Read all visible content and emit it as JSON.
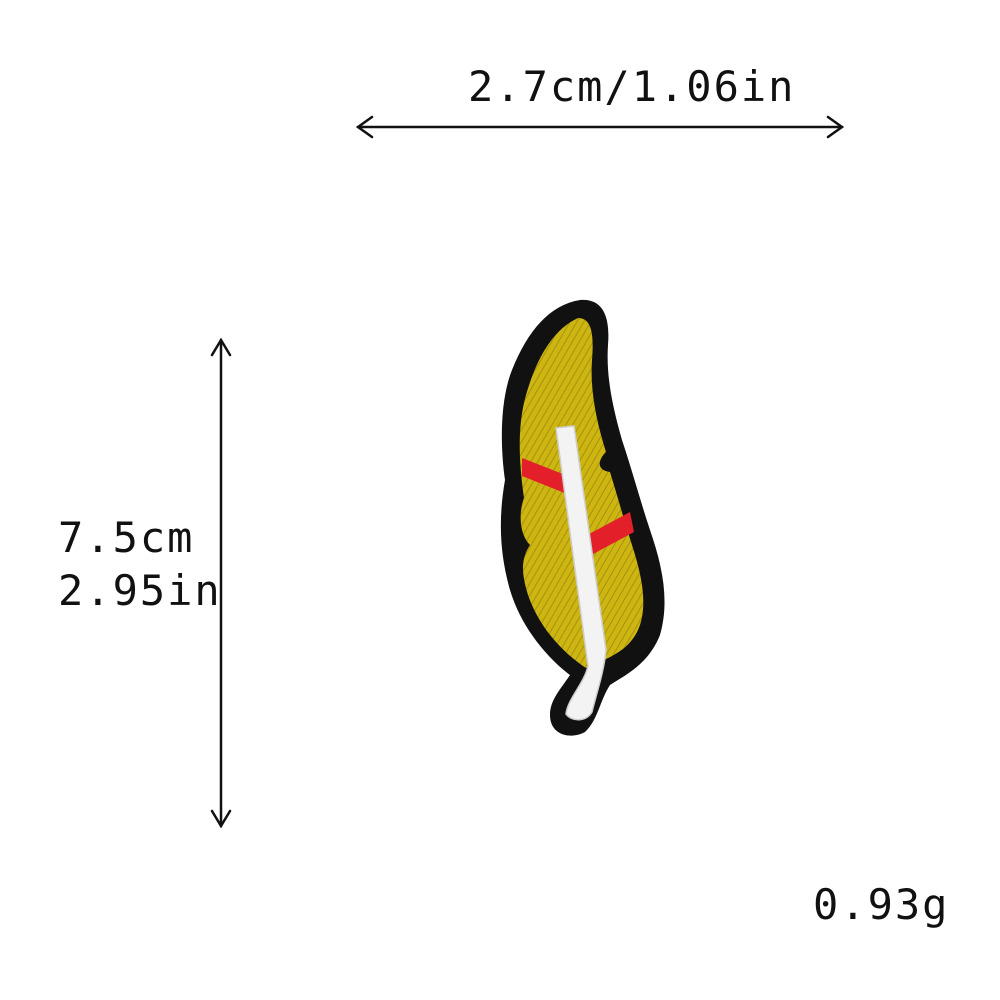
{
  "dimensions": {
    "width_label": "2.7cm/1.06in",
    "height_label_cm": "7.5cm",
    "height_label_in": "2.95in",
    "weight_label": "0.93g"
  },
  "product": {
    "icon": "feather-patch-icon",
    "colors": {
      "border": "#111111",
      "feather_fill": "#cdb512",
      "feather_shade": "#a8920c",
      "stripe": "#e3202a",
      "quill": "#f3f3f3"
    }
  }
}
